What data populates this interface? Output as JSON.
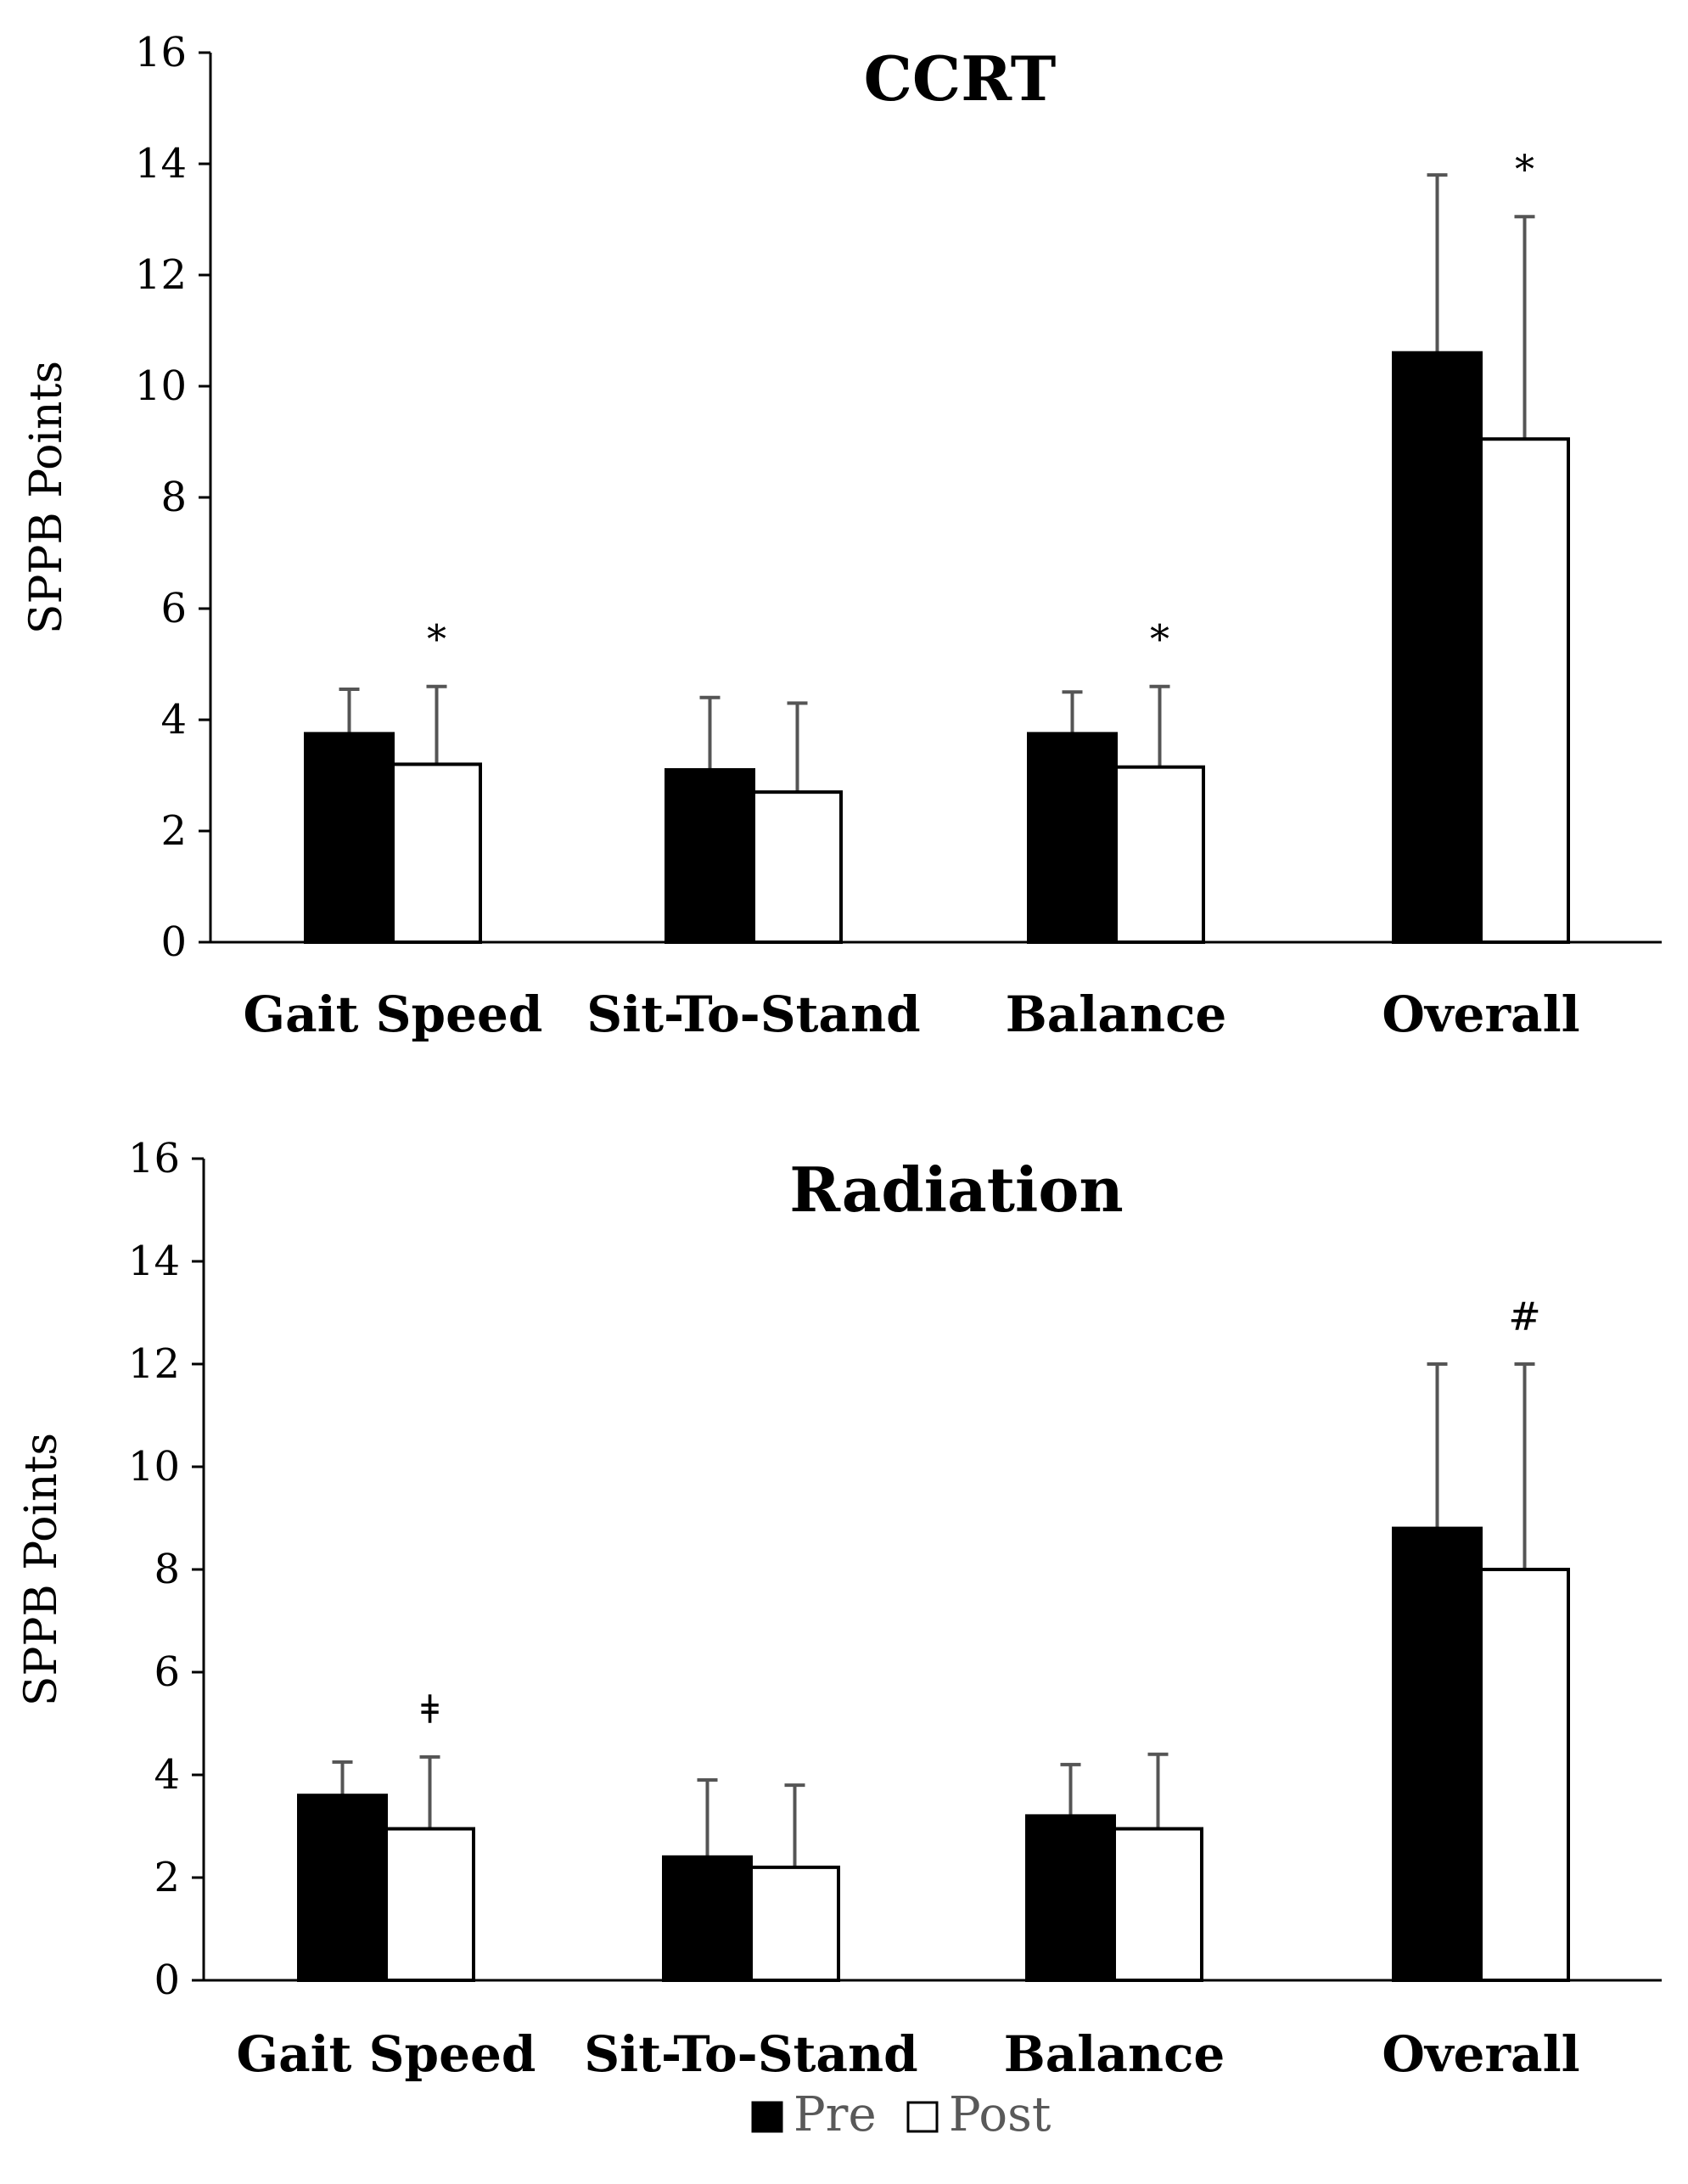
{
  "chart_data": [
    {
      "type": "bar",
      "title": "CCRT",
      "xlabel": "",
      "ylabel": "SPPB Points",
      "ylim": [
        0,
        16
      ],
      "yticks": [
        0,
        2,
        4,
        6,
        8,
        10,
        12,
        14,
        16
      ],
      "categories": [
        "Gait Speed",
        "Sit-To-Stand",
        "Balance",
        "Overall"
      ],
      "series": [
        {
          "name": "Pre",
          "color": "#000000",
          "values": [
            3.75,
            3.1,
            3.75,
            10.6
          ],
          "error": [
            0.8,
            1.3,
            0.75,
            3.2
          ]
        },
        {
          "name": "Post",
          "color": "#ffffff",
          "values": [
            3.2,
            2.7,
            3.15,
            9.05
          ],
          "error": [
            1.4,
            1.6,
            1.45,
            4.0
          ]
        }
      ],
      "significance": [
        "*",
        "",
        "*",
        "*"
      ]
    },
    {
      "type": "bar",
      "title": "Radiation",
      "xlabel": "",
      "ylabel": "SPPB Points",
      "ylim": [
        0,
        16
      ],
      "yticks": [
        0,
        2,
        4,
        6,
        8,
        10,
        12,
        14,
        16
      ],
      "categories": [
        "Gait Speed",
        "Sit-To-Stand",
        "Balance",
        "Overall"
      ],
      "series": [
        {
          "name": "Pre",
          "color": "#000000",
          "values": [
            3.6,
            2.4,
            3.2,
            8.8
          ],
          "error": [
            0.65,
            1.5,
            1.0,
            3.2
          ]
        },
        {
          "name": "Post",
          "color": "#ffffff",
          "values": [
            2.95,
            2.2,
            2.95,
            8.0
          ],
          "error": [
            1.4,
            1.6,
            1.45,
            4.0
          ]
        }
      ],
      "significance": [
        "ǂ",
        "",
        "",
        "#"
      ]
    }
  ],
  "legend": [
    "Pre",
    "Post"
  ]
}
